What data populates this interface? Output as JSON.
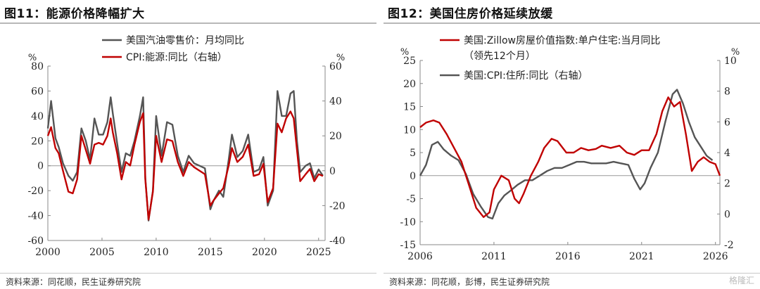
{
  "chart1": {
    "title": "图11：能源价格降幅扩大",
    "source": "资料来源：同花顺，民生证券研究院",
    "chart_data": {
      "type": "line",
      "left_unit": "%",
      "right_unit": "%",
      "ylim_left": [
        -60,
        80
      ],
      "ylim_right": [
        -40,
        60
      ],
      "xlim": [
        2000,
        2025.6
      ],
      "left_ticks": [
        "80",
        "60",
        "40",
        "20",
        "0",
        "-20",
        "-40",
        "-60"
      ],
      "right_ticks": [
        "60",
        "40",
        "20",
        "0",
        "-20",
        "-40"
      ],
      "x_ticks": [
        "2000",
        "2005",
        "2010",
        "2015",
        "2020",
        "2025"
      ],
      "legend_position": "top",
      "series": [
        {
          "name": "美国汽油零售价：月均同比",
          "axis": "left",
          "color": "#555555",
          "x": [
            2000,
            2000.3,
            2000.7,
            2001,
            2001.4,
            2001.9,
            2002.3,
            2002.7,
            2003.1,
            2003.5,
            2003.9,
            2004.3,
            2004.7,
            2005.1,
            2005.5,
            2005.8,
            2006,
            2006.4,
            2006.8,
            2007.2,
            2007.6,
            2008,
            2008.5,
            2008.8,
            2009,
            2009.3,
            2009.7,
            2010,
            2010.5,
            2011,
            2011.5,
            2012,
            2012.5,
            2013,
            2013.5,
            2014,
            2014.5,
            2015,
            2015.3,
            2015.8,
            2016.2,
            2016.7,
            2017,
            2017.5,
            2018,
            2018.5,
            2019,
            2019.5,
            2019.9,
            2020.3,
            2020.8,
            2021.2,
            2021.6,
            2022,
            2022.4,
            2022.7,
            2023,
            2023.3,
            2023.8,
            2024.2,
            2024.6,
            2025,
            2025.4
          ],
          "y": [
            30,
            52,
            22,
            15,
            2,
            -8,
            -12,
            -5,
            30,
            20,
            5,
            38,
            25,
            25,
            35,
            55,
            42,
            18,
            -5,
            10,
            8,
            20,
            40,
            55,
            -10,
            -44,
            -20,
            40,
            8,
            35,
            33,
            8,
            -5,
            8,
            2,
            0,
            -2,
            -35,
            -28,
            -20,
            -25,
            5,
            25,
            7,
            12,
            25,
            -5,
            -3,
            7,
            -32,
            -20,
            60,
            40,
            40,
            58,
            60,
            20,
            -5,
            0,
            2,
            -10,
            -3,
            -8
          ]
        },
        {
          "name": "CPI:能源:同比（右轴）",
          "axis": "right",
          "color": "#c00000",
          "x": [
            2000,
            2000.3,
            2000.7,
            2001,
            2001.4,
            2001.9,
            2002.3,
            2002.7,
            2003.1,
            2003.5,
            2003.9,
            2004.3,
            2004.7,
            2005.1,
            2005.5,
            2005.8,
            2006,
            2006.4,
            2006.8,
            2007.2,
            2007.6,
            2008,
            2008.5,
            2008.8,
            2009,
            2009.3,
            2009.7,
            2010,
            2010.5,
            2011,
            2011.5,
            2012,
            2012.5,
            2013,
            2013.5,
            2014,
            2014.5,
            2015,
            2015.3,
            2015.8,
            2016.2,
            2016.7,
            2017,
            2017.5,
            2018,
            2018.5,
            2019,
            2019.5,
            2019.9,
            2020.3,
            2020.8,
            2021.2,
            2021.6,
            2022,
            2022.4,
            2022.7,
            2023,
            2023.3,
            2023.8,
            2024.2,
            2024.6,
            2025,
            2025.4
          ],
          "y": [
            20,
            25,
            13,
            10,
            0,
            -12,
            -13,
            -5,
            20,
            12,
            4,
            15,
            16,
            15,
            20,
            30,
            22,
            10,
            -5,
            5,
            3,
            15,
            28,
            33,
            -5,
            -28,
            -12,
            20,
            5,
            18,
            17,
            5,
            -3,
            5,
            2,
            0,
            -2,
            -20,
            -17,
            -13,
            -10,
            3,
            13,
            5,
            8,
            15,
            -3,
            -2,
            4,
            -18,
            -10,
            27,
            22,
            30,
            34,
            30,
            12,
            -6,
            -2,
            1,
            -6,
            -2,
            -3
          ]
        }
      ]
    }
  },
  "chart2": {
    "title": "图12：美国住房价格延续放缓",
    "source": "资料来源：同花顺，彭博，民生证券研究院",
    "watermark": "格隆汇",
    "chart_data": {
      "type": "line",
      "left_unit": "%",
      "right_unit": "%",
      "ylim_left": [
        -15,
        25
      ],
      "ylim_right": [
        -2,
        10
      ],
      "xlim": [
        2006,
        2026.3
      ],
      "left_ticks": [
        "25",
        "20",
        "15",
        "10",
        "5",
        "0",
        "-5",
        "-10",
        "-15"
      ],
      "right_ticks": [
        "10",
        "8",
        "6",
        "4",
        "2",
        "0",
        "-2"
      ],
      "x_ticks": [
        "2006",
        "2011",
        "2016",
        "2021",
        "2026"
      ],
      "legend_position": "top",
      "series": [
        {
          "name": "美国:Zillow房屋价值指数:单户住宅:当月同比（领先12个月）",
          "axis": "left",
          "color": "#c00000",
          "x": [
            2006,
            2006.4,
            2006.9,
            2007.3,
            2007.8,
            2008.3,
            2008.8,
            2009.3,
            2009.8,
            2010.3,
            2010.7,
            2011,
            2011.5,
            2012,
            2012.4,
            2012.7,
            2013,
            2013.5,
            2014,
            2014.4,
            2014.9,
            2015.3,
            2015.9,
            2016.4,
            2016.9,
            2017.4,
            2017.9,
            2018.3,
            2018.9,
            2019.5,
            2020,
            2020.5,
            2021,
            2021.5,
            2022,
            2022.4,
            2022.8,
            2023.2,
            2023.6,
            2024,
            2024.4,
            2024.8,
            2025.2,
            2025.6,
            2026,
            2026.3
          ],
          "y": [
            10.5,
            11.5,
            12,
            11.5,
            9,
            6,
            3,
            -2,
            -7,
            -9,
            -8,
            -3,
            0,
            -1,
            -5,
            -6,
            -4,
            0,
            3,
            6,
            8,
            7.5,
            5,
            5,
            6,
            5.5,
            5.8,
            6.5,
            6,
            6.5,
            5,
            4.5,
            5.5,
            5.5,
            9,
            14,
            17,
            15,
            16,
            9,
            1,
            3,
            4,
            3,
            2.5,
            0
          ]
        },
        {
          "name": "美国:CPI:住所:同比（右轴）",
          "axis": "right",
          "color": "#555555",
          "x": [
            2006,
            2006.4,
            2006.8,
            2007.2,
            2007.6,
            2008.1,
            2008.6,
            2009.1,
            2009.6,
            2010.1,
            2010.6,
            2010.9,
            2011.3,
            2011.7,
            2012.1,
            2012.6,
            2013.1,
            2013.6,
            2014.1,
            2014.6,
            2015.1,
            2015.6,
            2016.1,
            2016.6,
            2017.1,
            2017.6,
            2018.1,
            2018.6,
            2019.1,
            2019.6,
            2020.1,
            2020.5,
            2020.9,
            2021.2,
            2021.6,
            2022.1,
            2022.6,
            2023.1,
            2023.4,
            2023.8,
            2024.2,
            2024.6,
            2025,
            2025.4,
            2025.8
          ],
          "y": [
            2.5,
            3.2,
            4.5,
            4.7,
            4.2,
            3.8,
            3.5,
            2.6,
            1.3,
            0.5,
            -0.2,
            -0.3,
            0.7,
            1.2,
            1.5,
            1.9,
            2.2,
            2.2,
            2.5,
            2.8,
            3,
            3,
            3.2,
            3.4,
            3.4,
            3.3,
            3.3,
            3.3,
            3.4,
            3.3,
            3.2,
            2.3,
            1.6,
            2,
            3,
            4,
            6,
            7.8,
            8.1,
            7.2,
            6,
            5,
            4.4,
            3.8,
            3.5
          ]
        }
      ]
    }
  }
}
